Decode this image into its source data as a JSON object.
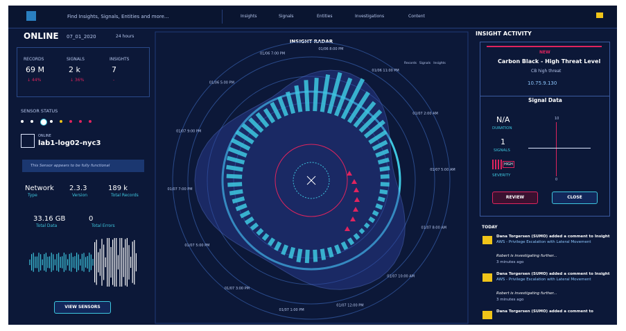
{
  "nav": {
    "search": "Find Insights, Signals, Entities and more...",
    "items": [
      "Insights",
      "Signals",
      "Entities",
      "Investigations",
      "Content"
    ]
  },
  "status": {
    "state": "ONLINE",
    "date": "07_01_2020",
    "range": "24 hours"
  },
  "metrics": [
    {
      "label": "RECORDS",
      "value": "69 M",
      "change": "↓ 44%"
    },
    {
      "label": "SIGNALS",
      "value": "2 k",
      "change": "↓ 36%"
    },
    {
      "label": "INSIGHTS",
      "value": "7",
      "change": "-"
    }
  ],
  "sensor": {
    "heading": "SENSOR STATUS",
    "state": "ONLINE",
    "name": "lab1-log02-nyc3",
    "message": "This Sensor appears to be fully functional",
    "stats": [
      {
        "value": "Network",
        "label": "Type"
      },
      {
        "value": "2.3.3",
        "label": "Version"
      },
      {
        "value": "189 k",
        "label": "Total Records"
      },
      {
        "value": "33.16 GB",
        "label": "Total Data"
      },
      {
        "value": "0",
        "label": "Total Errors"
      }
    ],
    "button": "VIEW SENSORS"
  },
  "radar": {
    "title": "INSIGHT RADAR",
    "legend": [
      "Records",
      "Signals",
      "Insights"
    ],
    "time_labels": [
      "01/06 8:00 PM",
      "01/06 11:00 PM",
      "01/07 2:00 AM",
      "01/07 5:00 AM",
      "01/07 8:00 AM",
      "01/07 10:00 AM",
      "01/07 12:00 PM",
      "01/07 1:00 PM",
      "01/07 3:00 PM",
      "01/07 5:00 PM",
      "01/07 7:00 PM",
      "01/07 9:00 PM",
      "01/06 5:00 PM",
      "01/06 7:00 PM"
    ],
    "bars": [
      30,
      34,
      38,
      36,
      40,
      32,
      28,
      26,
      22,
      18,
      14,
      12,
      10,
      9,
      8,
      8,
      7,
      6,
      6,
      5,
      5,
      4,
      4,
      5,
      6,
      7,
      8,
      9,
      10,
      11,
      12,
      12,
      10,
      9,
      8,
      7,
      6,
      6,
      7,
      8,
      9,
      10,
      11,
      12,
      13,
      14,
      15,
      16,
      17,
      18,
      18,
      17,
      16,
      15,
      14,
      16,
      18,
      20,
      24,
      28
    ]
  },
  "activity": {
    "title": "INSIGHT ACTIVITY",
    "badge": "NEW",
    "name": "Carbon Black - High Threat Level",
    "sub": "CB high threat",
    "ip": "10.75.9.130",
    "signal_title": "Signal Data",
    "duration": "N/A",
    "duration_label": "DURATION",
    "signals": "1",
    "signals_label": "SIGNALS",
    "severity": "HIGH",
    "severity_label": "SEVERITY",
    "axis_top": "10",
    "axis_bottom": "0",
    "review": "REVIEW",
    "close": "CLOSE",
    "today": "TODAY",
    "entries": [
      {
        "text": "Dana Torgersen (SUMO) added a comment to Insight",
        "link": "AWS - Privilege Escalation with Lateral Movement",
        "note": "Robert is investigating further...",
        "time": "3 minutes ago"
      },
      {
        "text": "Dana Torgersen (SUMO) added a comment to Insight",
        "link": "AWS - Privilege Escalation with Lateral Movement",
        "note": "Robert is investigating further...",
        "time": "3 minutes ago"
      },
      {
        "text": "Dana Torgersen (SUMO) added a comment to"
      }
    ]
  }
}
